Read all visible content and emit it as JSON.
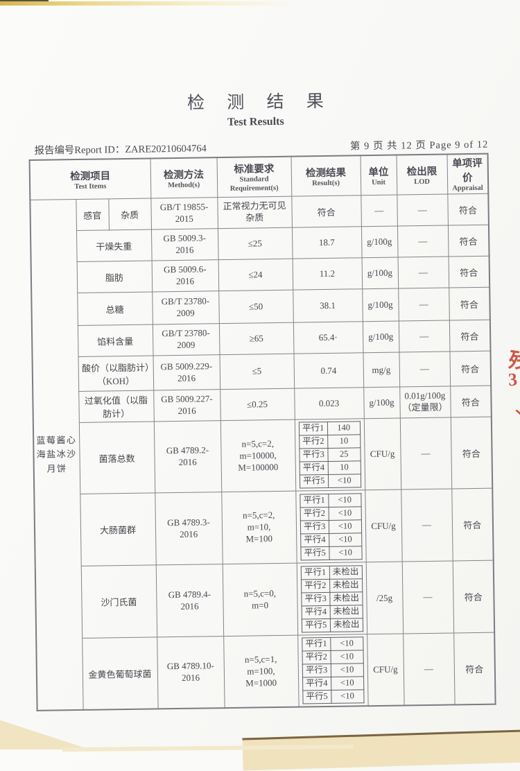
{
  "page": {
    "title_cn": "检 测 结 果",
    "title_en": "Test Results",
    "report_id_label": "报告编号Report ID：",
    "report_id": "ZARE20210604764",
    "page_info": "第 9 页 共 12 页 Page 9 of 12"
  },
  "colors": {
    "stamp_red": "#c93a26",
    "scan_edge_cream": "#efe2bd",
    "table_border_gray": "#83838b"
  },
  "stamp_fragments": [
    "残",
    "3",
    "丶"
  ],
  "table": {
    "headers": {
      "test_items_cn": "检测项目",
      "test_items_en": "Test Items",
      "method_cn": "检测方法",
      "method_en": "Method(s)",
      "standard_cn": "标准要求",
      "standard_en": "Standard Requirement(s)",
      "result_cn": "检测结果",
      "result_en": "Result(s)",
      "unit_cn": "单位",
      "unit_en": "Unit",
      "lod_cn": "检出限",
      "lod_en": "LOD",
      "appraisal_cn": "单项评价",
      "appraisal_en": "Appraisal"
    },
    "sample_name": "蓝莓酱心海盐冰沙月饼",
    "rows": [
      {
        "category": "感官",
        "item": "杂质",
        "method": "GB/T 19855-\n2015",
        "standard": "正常视力无可见\n杂质",
        "result": "符合",
        "unit": "—",
        "lod": "—",
        "appraisal": "符合"
      },
      {
        "item": "干燥失重",
        "method": "GB 5009.3-\n2016",
        "standard": "≤25",
        "result": "18.7",
        "unit": "g/100g",
        "lod": "—",
        "appraisal": "符合"
      },
      {
        "item": "脂肪",
        "method": "GB 5009.6-\n2016",
        "standard": "≤24",
        "result": "11.2",
        "unit": "g/100g",
        "lod": "—",
        "appraisal": "符合"
      },
      {
        "item": "总糖",
        "method": "GB/T 23780-\n2009",
        "standard": "≤50",
        "result": "38.1",
        "unit": "g/100g",
        "lod": "—",
        "appraisal": "符合"
      },
      {
        "item": "馅料含量",
        "method": "GB/T 23780-\n2009",
        "standard": "≥65",
        "result": "65.4·",
        "unit": "g/100g",
        "lod": "—",
        "appraisal": "符合"
      },
      {
        "item": "酸价（以脂肪计）（KOH）",
        "method": "GB 5009.229-\n2016",
        "standard": "≤5",
        "result": "0.74",
        "unit": "mg/g",
        "lod": "—",
        "appraisal": "符合"
      },
      {
        "item": "过氧化值（以脂肪计）",
        "method": "GB 5009.227-\n2016",
        "standard": "≤0.25",
        "result": "0.023",
        "unit": "g/100g",
        "lod": "0.01g/100g\n（定量限）",
        "appraisal": "符合"
      },
      {
        "item": "菌落总数",
        "method": "GB 4789.2-\n2016",
        "standard": "n=5,c=2,\nm=10000,\nM=100000",
        "parallels": [
          [
            "平行1",
            "140"
          ],
          [
            "平行2",
            "10"
          ],
          [
            "平行3",
            "25"
          ],
          [
            "平行4",
            "10"
          ],
          [
            "平行5",
            "<10"
          ]
        ],
        "unit": "CFU/g",
        "lod": "—",
        "appraisal": "符合"
      },
      {
        "item": "大肠菌群",
        "method": "GB 4789.3-\n2016",
        "standard": "n=5,c=2,\nm=10,\nM=100",
        "parallels": [
          [
            "平行1",
            "<10"
          ],
          [
            "平行2",
            "<10"
          ],
          [
            "平行3",
            "<10"
          ],
          [
            "平行4",
            "<10"
          ],
          [
            "平行5",
            "<10"
          ]
        ],
        "unit": "CFU/g",
        "lod": "—",
        "appraisal": "符合"
      },
      {
        "item": "沙门氏菌",
        "method": "GB 4789.4-\n2016",
        "standard": "n=5,c=0,\nm=0",
        "parallels": [
          [
            "平行1",
            "未检出"
          ],
          [
            "平行2",
            "未检出"
          ],
          [
            "平行3",
            "未检出"
          ],
          [
            "平行4",
            "未检出"
          ],
          [
            "平行5",
            "未检出"
          ]
        ],
        "unit": "/25g",
        "lod": "—",
        "appraisal": "符合"
      },
      {
        "item": "金黄色葡萄球菌",
        "method": "GB 4789.10-\n2016",
        "standard": "n=5,c=1,\nm=100,\nM=1000",
        "parallels": [
          [
            "平行1",
            "<10"
          ],
          [
            "平行2",
            "<10"
          ],
          [
            "平行3",
            "<10"
          ],
          [
            "平行4",
            "<10"
          ],
          [
            "平行5",
            "<10"
          ]
        ],
        "unit": "CFU/g",
        "lod": "—",
        "appraisal": "符合"
      }
    ]
  }
}
